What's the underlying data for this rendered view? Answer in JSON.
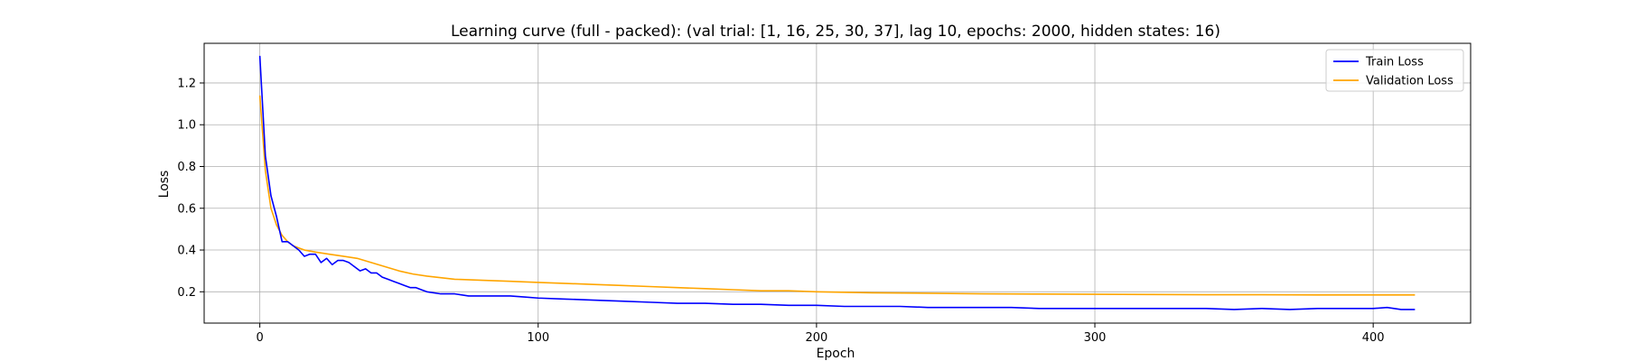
{
  "chart_data": {
    "type": "line",
    "title": "Learning curve (full - packed): (val trial: [1, 16, 25, 30, 37], lag 10, epochs: 2000, hidden states: 16)",
    "xlabel": "Epoch",
    "ylabel": "Loss",
    "xlim": [
      -20,
      435
    ],
    "ylim": [
      0.05,
      1.39
    ],
    "xticks": [
      0,
      100,
      200,
      300,
      400
    ],
    "yticks": [
      0.2,
      0.4,
      0.6,
      0.8,
      1.0,
      1.2
    ],
    "xtick_labels": [
      "0",
      "100",
      "200",
      "300",
      "400"
    ],
    "ytick_labels": [
      "0.2",
      "0.4",
      "0.6",
      "0.8",
      "1.0",
      "1.2"
    ],
    "grid": true,
    "legend_position": "top-right",
    "series": [
      {
        "name": "Train Loss",
        "color": "#0000ff",
        "x": [
          0,
          2,
          4,
          6,
          7,
          8,
          10,
          12,
          14,
          16,
          18,
          20,
          22,
          24,
          26,
          28,
          30,
          32,
          34,
          36,
          38,
          40,
          42,
          44,
          46,
          48,
          50,
          52,
          54,
          56,
          58,
          60,
          65,
          70,
          75,
          80,
          85,
          90,
          95,
          100,
          110,
          120,
          130,
          140,
          150,
          160,
          170,
          180,
          190,
          200,
          210,
          220,
          230,
          240,
          250,
          260,
          270,
          280,
          290,
          300,
          310,
          320,
          330,
          340,
          350,
          360,
          370,
          380,
          390,
          400,
          405,
          410,
          415
        ],
        "y": [
          1.33,
          0.85,
          0.66,
          0.56,
          0.5,
          0.44,
          0.44,
          0.42,
          0.4,
          0.37,
          0.38,
          0.38,
          0.34,
          0.36,
          0.33,
          0.35,
          0.35,
          0.34,
          0.32,
          0.3,
          0.31,
          0.29,
          0.29,
          0.27,
          0.26,
          0.25,
          0.24,
          0.23,
          0.22,
          0.22,
          0.21,
          0.2,
          0.19,
          0.19,
          0.18,
          0.18,
          0.18,
          0.18,
          0.175,
          0.17,
          0.165,
          0.16,
          0.155,
          0.15,
          0.145,
          0.145,
          0.14,
          0.14,
          0.135,
          0.135,
          0.13,
          0.13,
          0.13,
          0.125,
          0.125,
          0.125,
          0.125,
          0.12,
          0.12,
          0.12,
          0.12,
          0.12,
          0.12,
          0.12,
          0.115,
          0.12,
          0.115,
          0.12,
          0.12,
          0.12,
          0.125,
          0.115,
          0.115
        ]
      },
      {
        "name": "Validation Loss",
        "color": "#ffa500",
        "x": [
          0,
          2,
          4,
          6,
          8,
          10,
          12,
          14,
          16,
          18,
          20,
          25,
          30,
          35,
          40,
          45,
          50,
          55,
          60,
          70,
          80,
          90,
          100,
          110,
          120,
          130,
          140,
          150,
          160,
          170,
          180,
          190,
          200,
          220,
          240,
          260,
          280,
          300,
          320,
          340,
          360,
          380,
          400,
          415
        ],
        "y": [
          1.14,
          0.78,
          0.6,
          0.52,
          0.47,
          0.44,
          0.42,
          0.41,
          0.4,
          0.395,
          0.39,
          0.38,
          0.37,
          0.36,
          0.34,
          0.32,
          0.3,
          0.285,
          0.275,
          0.26,
          0.255,
          0.25,
          0.245,
          0.24,
          0.235,
          0.23,
          0.225,
          0.22,
          0.215,
          0.21,
          0.205,
          0.205,
          0.2,
          0.195,
          0.193,
          0.19,
          0.189,
          0.188,
          0.187,
          0.186,
          0.186,
          0.185,
          0.185,
          0.185
        ]
      }
    ]
  }
}
